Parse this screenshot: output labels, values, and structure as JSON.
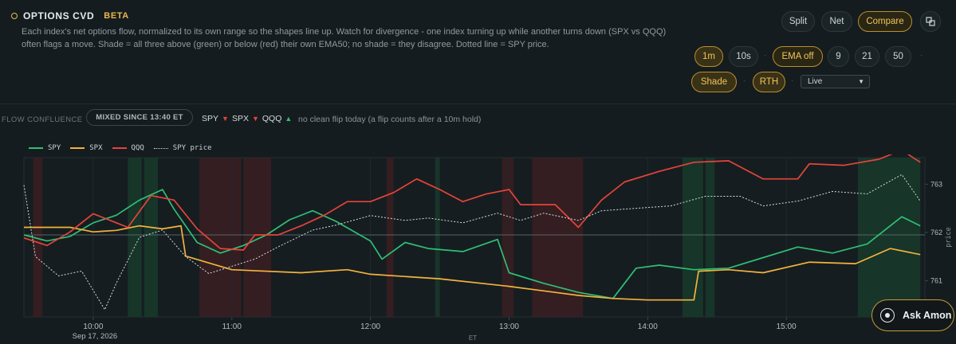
{
  "header": {
    "title": "OPTIONS CVD",
    "badge": "BETA",
    "description": "Each index's net options flow, normalized to its own range so the shapes line up. Watch for divergence - one index turning up while another turns down (SPX vs QQQ) often flags a move. Shade = all three above (green) or below (red) their own EMA50; no shade = they disagree. Dotted line = SPY price."
  },
  "view_toggle": {
    "split": "Split",
    "net": "Net",
    "compare": "Compare",
    "active": "Compare"
  },
  "interval": {
    "one_min": "1m",
    "ten_sec": "10s",
    "active": "1m"
  },
  "ema": {
    "off": "EMA off",
    "nine": "9",
    "twentyone": "21",
    "fifty": "50",
    "active": "EMA off"
  },
  "toggles": {
    "shade": "Shade",
    "rth": "RTH"
  },
  "mode_select": {
    "value": "Live"
  },
  "flow": {
    "label": "FLOW CONFLUENCE",
    "status": "MIXED SINCE 13:40 ET",
    "tickers": [
      {
        "name": "SPY",
        "dir": "down"
      },
      {
        "name": "SPX",
        "dir": "down"
      },
      {
        "name": "QQQ",
        "dir": "up"
      }
    ],
    "note": "no clean flip today (a flip counts after a 10m hold)"
  },
  "colors": {
    "spy": "#2fbf75",
    "spx": "#f2b33d",
    "qqq": "#e5443a",
    "price": "#d6dde0",
    "green_shade": "#173a2c",
    "red_shade": "#3a1f22",
    "accent": "#e8b84a"
  },
  "ask_button": {
    "label": "Ask Amon"
  },
  "chart_data": {
    "type": "line",
    "x_axis": {
      "label": "ET",
      "ticks": [
        "10:00",
        "11:00",
        "12:00",
        "13:00",
        "14:00",
        "15:00"
      ],
      "date": "Sep 17, 2026"
    },
    "y_axis_right": {
      "label": "price",
      "ticks": [
        761,
        762,
        763
      ],
      "ylim": [
        760.25,
        763.55
      ]
    },
    "reference_line": 761.95,
    "legend": [
      "SPY",
      "SPX",
      "QQQ",
      "SPY price"
    ],
    "series": [
      {
        "name": "SPY",
        "points": [
          [
            "09:30",
            0.5
          ],
          [
            "09:40",
            0.46
          ],
          [
            "09:50",
            0.49
          ],
          [
            "10:00",
            0.58
          ],
          [
            "10:10",
            0.63
          ],
          [
            "10:20",
            0.73
          ],
          [
            "10:30",
            0.8
          ],
          [
            "10:35",
            0.67
          ],
          [
            "10:45",
            0.45
          ],
          [
            "10:55",
            0.38
          ],
          [
            "11:05",
            0.43
          ],
          [
            "11:15",
            0.5
          ],
          [
            "11:25",
            0.6
          ],
          [
            "11:35",
            0.66
          ],
          [
            "11:45",
            0.59
          ],
          [
            "12:00",
            0.46
          ],
          [
            "12:05",
            0.34
          ],
          [
            "12:15",
            0.45
          ],
          [
            "12:25",
            0.41
          ],
          [
            "12:40",
            0.39
          ],
          [
            "12:55",
            0.47
          ],
          [
            "13:00",
            0.25
          ],
          [
            "13:15",
            0.18
          ],
          [
            "13:30",
            0.12
          ],
          [
            "13:45",
            0.08
          ],
          [
            "13:55",
            0.28
          ],
          [
            "14:05",
            0.3
          ],
          [
            "14:20",
            0.27
          ],
          [
            "14:35",
            0.28
          ],
          [
            "14:50",
            0.35
          ],
          [
            "15:05",
            0.42
          ],
          [
            "15:20",
            0.38
          ],
          [
            "15:35",
            0.44
          ],
          [
            "15:50",
            0.62
          ],
          [
            "15:58",
            0.56
          ]
        ]
      },
      {
        "name": "SPX",
        "points": [
          [
            "09:30",
            0.55
          ],
          [
            "09:50",
            0.55
          ],
          [
            "10:00",
            0.52
          ],
          [
            "10:10",
            0.53
          ],
          [
            "10:20",
            0.56
          ],
          [
            "10:30",
            0.54
          ],
          [
            "10:38",
            0.56
          ],
          [
            "10:40",
            0.36
          ],
          [
            "11:00",
            0.27
          ],
          [
            "11:30",
            0.25
          ],
          [
            "11:50",
            0.27
          ],
          [
            "12:00",
            0.24
          ],
          [
            "12:30",
            0.21
          ],
          [
            "13:00",
            0.16
          ],
          [
            "13:20",
            0.12
          ],
          [
            "13:30",
            0.1
          ],
          [
            "13:45",
            0.08
          ],
          [
            "14:00",
            0.07
          ],
          [
            "14:15",
            0.07
          ],
          [
            "14:20",
            0.07
          ],
          [
            "14:22",
            0.26
          ],
          [
            "14:35",
            0.27
          ],
          [
            "14:50",
            0.25
          ],
          [
            "15:10",
            0.32
          ],
          [
            "15:30",
            0.31
          ],
          [
            "15:45",
            0.41
          ],
          [
            "15:58",
            0.37
          ]
        ]
      },
      {
        "name": "QQQ",
        "points": [
          [
            "09:30",
            0.48
          ],
          [
            "09:40",
            0.43
          ],
          [
            "09:50",
            0.52
          ],
          [
            "10:00",
            0.64
          ],
          [
            "10:10",
            0.58
          ],
          [
            "10:15",
            0.55
          ],
          [
            "10:25",
            0.76
          ],
          [
            "10:35",
            0.73
          ],
          [
            "10:45",
            0.54
          ],
          [
            "10:55",
            0.41
          ],
          [
            "11:05",
            0.4
          ],
          [
            "11:10",
            0.5
          ],
          [
            "11:20",
            0.5
          ],
          [
            "11:30",
            0.56
          ],
          [
            "11:40",
            0.63
          ],
          [
            "11:50",
            0.72
          ],
          [
            "12:00",
            0.72
          ],
          [
            "12:10",
            0.78
          ],
          [
            "12:20",
            0.87
          ],
          [
            "12:30",
            0.8
          ],
          [
            "12:40",
            0.72
          ],
          [
            "12:50",
            0.77
          ],
          [
            "13:00",
            0.8
          ],
          [
            "13:05",
            0.7
          ],
          [
            "13:20",
            0.7
          ],
          [
            "13:30",
            0.55
          ],
          [
            "13:40",
            0.73
          ],
          [
            "13:50",
            0.85
          ],
          [
            "14:05",
            0.92
          ],
          [
            "14:20",
            0.98
          ],
          [
            "14:35",
            0.99
          ],
          [
            "14:50",
            0.87
          ],
          [
            "15:05",
            0.87
          ],
          [
            "15:10",
            0.97
          ],
          [
            "15:25",
            0.96
          ],
          [
            "15:40",
            1.0
          ],
          [
            "15:50",
            1.06
          ],
          [
            "15:58",
            0.98
          ]
        ]
      },
      {
        "name": "SPY price",
        "points": [
          [
            "09:30",
            762.98
          ],
          [
            "09:35",
            761.5
          ],
          [
            "09:45",
            761.1
          ],
          [
            "09:55",
            761.2
          ],
          [
            "10:05",
            760.4
          ],
          [
            "10:10",
            760.95
          ],
          [
            "10:20",
            761.9
          ],
          [
            "10:30",
            762.05
          ],
          [
            "10:40",
            761.5
          ],
          [
            "10:50",
            761.15
          ],
          [
            "11:00",
            761.3
          ],
          [
            "11:10",
            761.45
          ],
          [
            "11:20",
            761.7
          ],
          [
            "11:35",
            762.05
          ],
          [
            "11:45",
            762.15
          ],
          [
            "12:00",
            762.35
          ],
          [
            "12:15",
            762.25
          ],
          [
            "12:25",
            762.3
          ],
          [
            "12:40",
            762.2
          ],
          [
            "12:55",
            762.4
          ],
          [
            "13:05",
            762.25
          ],
          [
            "13:15",
            762.4
          ],
          [
            "13:30",
            762.25
          ],
          [
            "13:40",
            762.45
          ],
          [
            "13:55",
            762.5
          ],
          [
            "14:10",
            762.55
          ],
          [
            "14:25",
            762.75
          ],
          [
            "14:40",
            762.75
          ],
          [
            "14:50",
            762.55
          ],
          [
            "15:05",
            762.65
          ],
          [
            "15:20",
            762.85
          ],
          [
            "15:35",
            762.8
          ],
          [
            "15:50",
            763.2
          ],
          [
            "15:58",
            762.65
          ]
        ]
      }
    ],
    "shade_regions": [
      {
        "start": "09:34",
        "end": "09:38",
        "color": "red"
      },
      {
        "start": "10:15",
        "end": "10:21",
        "color": "green"
      },
      {
        "start": "10:22",
        "end": "10:28",
        "color": "green"
      },
      {
        "start": "10:46",
        "end": "11:04",
        "color": "red"
      },
      {
        "start": "11:05",
        "end": "11:17",
        "color": "red"
      },
      {
        "start": "12:07",
        "end": "12:10",
        "color": "red"
      },
      {
        "start": "12:28",
        "end": "12:30",
        "color": "green"
      },
      {
        "start": "12:57",
        "end": "13:02",
        "color": "red"
      },
      {
        "start": "13:10",
        "end": "13:32",
        "color": "red"
      },
      {
        "start": "14:15",
        "end": "14:24",
        "color": "green"
      },
      {
        "start": "14:25",
        "end": "14:29",
        "color": "green"
      },
      {
        "start": "15:31",
        "end": "15:58",
        "color": "green"
      }
    ]
  }
}
